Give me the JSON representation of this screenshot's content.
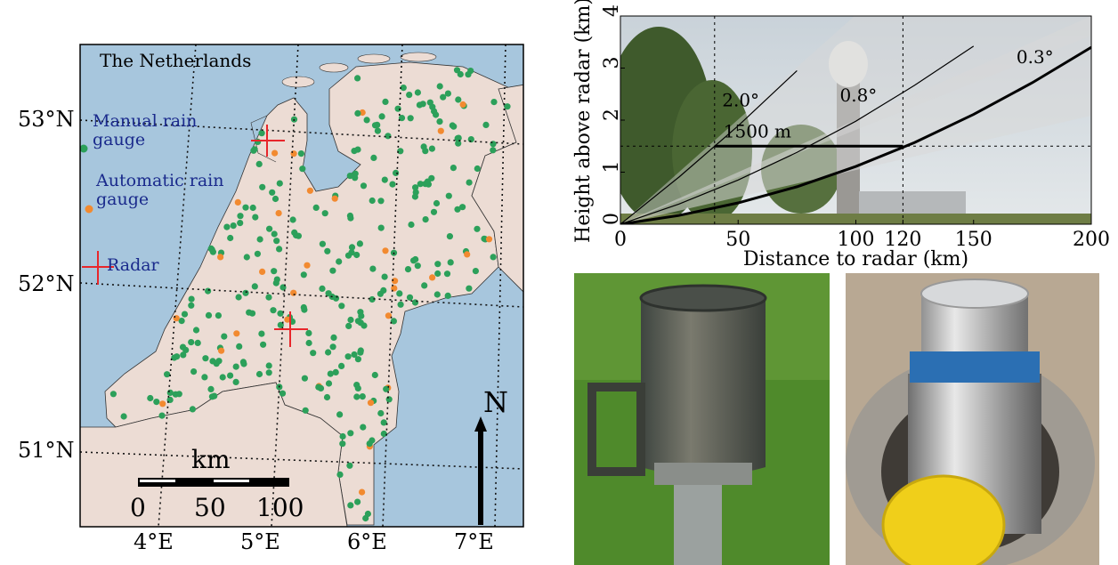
{
  "map": {
    "title": "The Netherlands",
    "legend": [
      {
        "label": "Manual rain gauge",
        "color": "#2ca05a"
      },
      {
        "label": "Automatic rain gauge",
        "color": "#f28a30"
      },
      {
        "label": "Radar",
        "color": "#e8262b"
      }
    ],
    "lat_labels": [
      "53°N",
      "52°N",
      "51°N"
    ],
    "lon_labels": [
      "4°E",
      "5°E",
      "6°E",
      "7°E"
    ],
    "scale_bar": {
      "unit": "km",
      "ticks": [
        "0",
        "50",
        "100"
      ]
    },
    "north": "N"
  },
  "chart_data": {
    "type": "line",
    "xlabel": "Distance to radar (km)",
    "ylabel": "Height above radar (km)",
    "x": [
      0,
      25,
      50,
      75,
      100,
      125,
      150,
      175,
      200
    ],
    "series": [
      {
        "name": "2.0°",
        "color": "#000000",
        "width": 1.2,
        "values": [
          0,
          0.91,
          1.89,
          2.95,
          null,
          null,
          null,
          null,
          null
        ]
      },
      {
        "name": "0.8°",
        "color": "#000000",
        "width": 1.2,
        "values": [
          0,
          0.39,
          0.85,
          1.38,
          1.98,
          2.67,
          3.42,
          null,
          null
        ]
      },
      {
        "name": "0.3°",
        "color": "#000000",
        "width": 3,
        "values": [
          0,
          0.17,
          0.41,
          0.72,
          1.11,
          1.57,
          2.11,
          2.72,
          3.4
        ]
      }
    ],
    "xlim": [
      0,
      200
    ],
    "ylim": [
      0,
      4
    ],
    "xticks": [
      0,
      50,
      100,
      120,
      150,
      200
    ],
    "yticks": [
      0,
      1,
      2,
      3,
      4
    ],
    "hline": {
      "value": 1.5,
      "label": "1500 m"
    },
    "vlines": [
      40,
      120
    ]
  }
}
